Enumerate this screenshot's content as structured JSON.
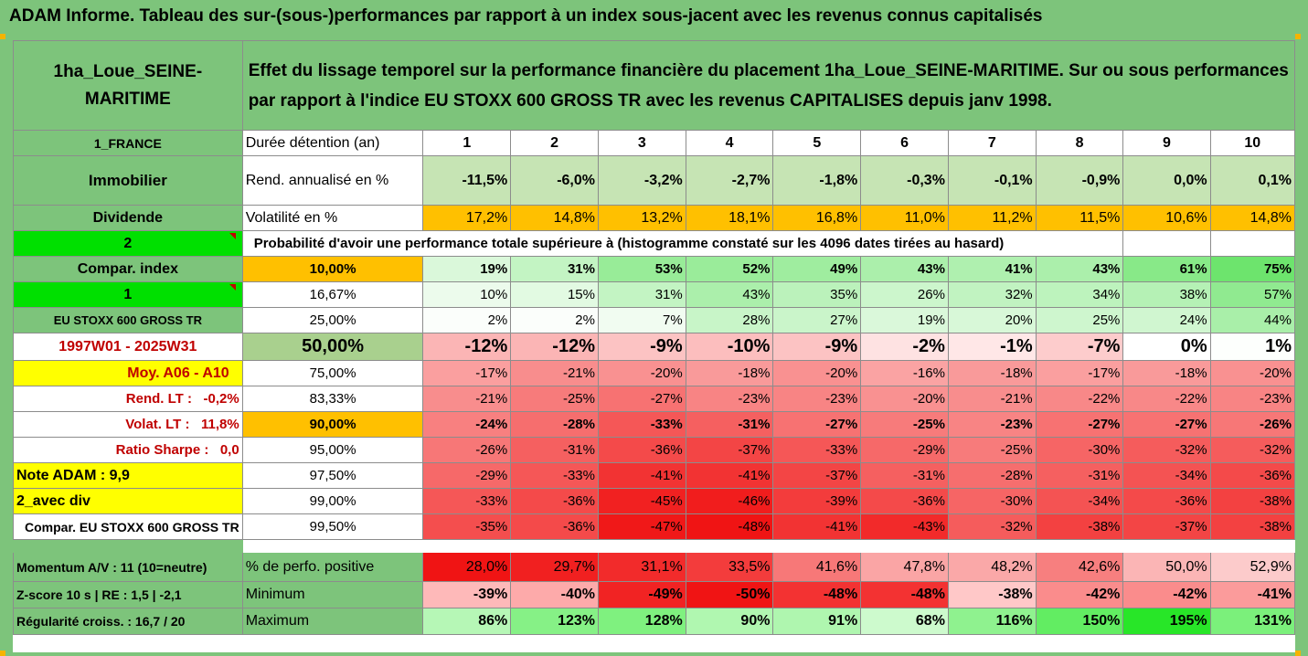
{
  "title": "ADAM Informe. Tableau des sur-(sous-)performances par rapport à un index sous-jacent avec les revenus connus capitalisés",
  "header": {
    "fund_name": "1ha_Loue_SEINE-MARITIME",
    "description": "Effet du lissage temporel sur la performance financière du placement 1ha_Loue_SEINE-MARITIME. Sur ou sous performances par rapport à l'indice EU STOXX 600 GROSS TR avec les revenus CAPITALISES depuis janv 1998."
  },
  "sidebar": [
    "1_FRANCE",
    "Immobilier",
    "Dividende",
    "2",
    "Compar. index",
    "1",
    "EU STOXX 600 GROSS TR",
    "1997W01 - 2025W31",
    "Moy. A06 - A10",
    "Rend. LT :   -0,2%",
    "Volat. LT :   11,8%",
    "Ratio Sharpe :   0,0",
    "Note ADAM : 9,9",
    "2_avec div",
    "Compar. EU STOXX 600 GROSS TR"
  ],
  "stats": {
    "duration_label": "Durée détention (an)",
    "years": [
      "1",
      "2",
      "3",
      "4",
      "5",
      "6",
      "7",
      "8",
      "9",
      "10"
    ],
    "return_label": "Rend. annualisé en %",
    "returns": [
      "-11,5%",
      "-6,0%",
      "-3,2%",
      "-2,7%",
      "-1,8%",
      "-0,3%",
      "-0,1%",
      "-0,9%",
      "0,0%",
      "0,1%"
    ],
    "volatility_label": "Volatilité en %",
    "volatility": [
      "17,2%",
      "14,8%",
      "13,2%",
      "18,1%",
      "16,8%",
      "11,0%",
      "11,2%",
      "11,5%",
      "10,6%",
      "14,8%"
    ]
  },
  "probability_title": "Probabilité d'avoir une performance totale supérieure à (histogramme constaté sur les 4096 dates tirées au hasard)",
  "quantiles": [
    {
      "label": "10,00%",
      "values": [
        "19%",
        "31%",
        "53%",
        "52%",
        "49%",
        "43%",
        "41%",
        "43%",
        "61%",
        "75%"
      ]
    },
    {
      "label": "16,67%",
      "values": [
        "10%",
        "15%",
        "31%",
        "43%",
        "35%",
        "26%",
        "32%",
        "34%",
        "38%",
        "57%"
      ]
    },
    {
      "label": "25,00%",
      "values": [
        "2%",
        "2%",
        "7%",
        "28%",
        "27%",
        "19%",
        "20%",
        "25%",
        "24%",
        "44%"
      ]
    },
    {
      "label": "50,00%",
      "values": [
        "-12%",
        "-12%",
        "-9%",
        "-10%",
        "-9%",
        "-2%",
        "-1%",
        "-7%",
        "0%",
        "1%"
      ]
    },
    {
      "label": "75,00%",
      "values": [
        "-17%",
        "-21%",
        "-20%",
        "-18%",
        "-20%",
        "-16%",
        "-18%",
        "-17%",
        "-18%",
        "-20%"
      ]
    },
    {
      "label": "83,33%",
      "values": [
        "-21%",
        "-25%",
        "-27%",
        "-23%",
        "-23%",
        "-20%",
        "-21%",
        "-22%",
        "-22%",
        "-23%"
      ]
    },
    {
      "label": "90,00%",
      "values": [
        "-24%",
        "-28%",
        "-33%",
        "-31%",
        "-27%",
        "-25%",
        "-23%",
        "-27%",
        "-27%",
        "-26%"
      ]
    },
    {
      "label": "95,00%",
      "values": [
        "-26%",
        "-31%",
        "-36%",
        "-37%",
        "-33%",
        "-29%",
        "-25%",
        "-30%",
        "-32%",
        "-32%"
      ]
    },
    {
      "label": "97,50%",
      "values": [
        "-29%",
        "-33%",
        "-41%",
        "-41%",
        "-37%",
        "-31%",
        "-28%",
        "-31%",
        "-34%",
        "-36%"
      ]
    },
    {
      "label": "99,00%",
      "values": [
        "-33%",
        "-36%",
        "-45%",
        "-46%",
        "-39%",
        "-36%",
        "-30%",
        "-34%",
        "-36%",
        "-38%"
      ]
    },
    {
      "label": "99,50%",
      "values": [
        "-35%",
        "-36%",
        "-47%",
        "-48%",
        "-41%",
        "-43%",
        "-32%",
        "-38%",
        "-37%",
        "-38%"
      ]
    }
  ],
  "bottom": [
    {
      "side": "Momentum A/V : 11 (10=neutre)",
      "label": "% de perfo. positive",
      "values": [
        "28,0%",
        "29,7%",
        "31,1%",
        "33,5%",
        "41,6%",
        "47,8%",
        "48,2%",
        "42,6%",
        "50,0%",
        "52,9%"
      ]
    },
    {
      "side": "Z-score 10 s | RE : 1,5 | -2,1",
      "label": "Minimum",
      "values": [
        "-39%",
        "-40%",
        "-49%",
        "-50%",
        "-48%",
        "-48%",
        "-38%",
        "-42%",
        "-42%",
        "-41%"
      ]
    },
    {
      "side": "Régularité croiss. : 16,7 / 20",
      "label": "Maximum",
      "values": [
        "86%",
        "123%",
        "128%",
        "90%",
        "91%",
        "68%",
        "116%",
        "150%",
        "195%",
        "131%"
      ]
    }
  ],
  "colors": {
    "header_green": "#7dc47b",
    "bright_green": "#00e000",
    "yellow": "#ffff00",
    "orange": "#ffc000",
    "dark_red_text": "#c00000"
  }
}
